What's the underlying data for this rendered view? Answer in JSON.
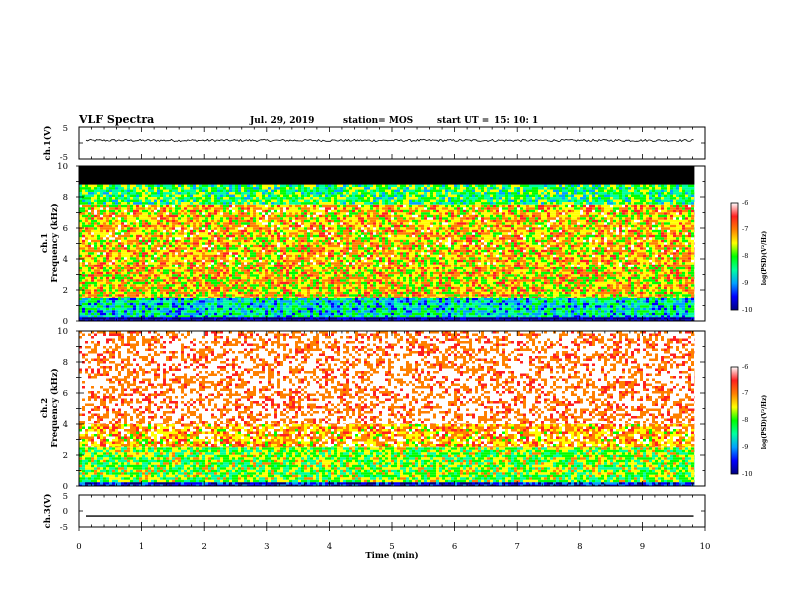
{
  "header": {
    "title": "VLF Spectra",
    "date": "Jul. 29, 2019",
    "station": "station= MOS",
    "start_label": "start  UT  =",
    "start_time": "15: 10: 1"
  },
  "chart_data": [
    {
      "type": "line",
      "name": "ch1-waveform",
      "ylabel": "ch.1(V)",
      "ylim": [
        -5,
        5
      ],
      "ytick_labels": [
        "5",
        "-5"
      ],
      "xlim": [
        0,
        10
      ],
      "color": "#000000",
      "trace_level": 0.8,
      "trace_noise": 0.35
    },
    {
      "type": "heatmap",
      "name": "ch1-spectrogram",
      "ylabel_line1": "ch.1",
      "ylabel_line2": "Frequency (kHz)",
      "ylim": [
        0,
        10
      ],
      "ytick_labels": [
        "0",
        "2",
        "4",
        "6",
        "8",
        "10"
      ],
      "xlim": [
        0,
        10
      ],
      "data_end_min": 9.83,
      "bands": [
        {
          "from": 0,
          "to": 0.25,
          "level": -9.8
        },
        {
          "from": 0.25,
          "to": 1.5,
          "level": -8.4
        },
        {
          "from": 1.5,
          "to": 3.5,
          "level": -7.1
        },
        {
          "from": 3.5,
          "to": 7.5,
          "level": -7.0
        },
        {
          "from": 7.5,
          "to": 8.8,
          "level": -7.9
        },
        {
          "from": 8.8,
          "to": 10,
          "level": -10
        }
      ],
      "colorbar": {
        "ticks": [
          "-6",
          "-7",
          "-8",
          "-9",
          "-10"
        ],
        "range": [
          -10,
          -6
        ],
        "label": "log(PSD)(V²/Hz)"
      }
    },
    {
      "type": "heatmap",
      "name": "ch2-spectrogram",
      "ylabel_line1": "ch.2",
      "ylabel_line2": "Frequency (kHz)",
      "ylim": [
        0,
        10
      ],
      "ytick_labels": [
        "0",
        "2",
        "4",
        "6",
        "8",
        "10"
      ],
      "xlim": [
        0,
        10
      ],
      "data_end_min": 9.83,
      "bands": [
        {
          "from": 0,
          "to": 0.25,
          "level": -9.3
        },
        {
          "from": 0.25,
          "to": 2.5,
          "level": -7.6
        },
        {
          "from": 2.5,
          "to": 4.0,
          "level": -6.8
        },
        {
          "from": 4.0,
          "to": 10,
          "level": -6.2
        }
      ],
      "colorbar": {
        "ticks": [
          "-6",
          "-7",
          "-8",
          "-9",
          "-10"
        ],
        "range": [
          -10,
          -6
        ],
        "label": "log(PSD)(V²/Hz)"
      }
    },
    {
      "type": "line",
      "name": "ch3-waveform",
      "ylabel": "ch.3(V)",
      "ylim": [
        -5,
        5
      ],
      "ytick_labels": [
        "5",
        "0",
        "-5"
      ],
      "xlim": [
        0,
        10
      ],
      "color": "#000000",
      "trace_level": -1.6,
      "trace_noise": 0.0
    }
  ],
  "x_axis": {
    "label": "Time  (min)",
    "ticks": [
      "0",
      "1",
      "2",
      "3",
      "4",
      "5",
      "6",
      "7",
      "8",
      "9",
      "10"
    ],
    "range": [
      0,
      10
    ]
  },
  "colorscale": [
    "#000080",
    "#0000ff",
    "#00a0ff",
    "#00ffa0",
    "#00ff00",
    "#ffff00",
    "#ff8000",
    "#ff2020",
    "#ffffff"
  ]
}
